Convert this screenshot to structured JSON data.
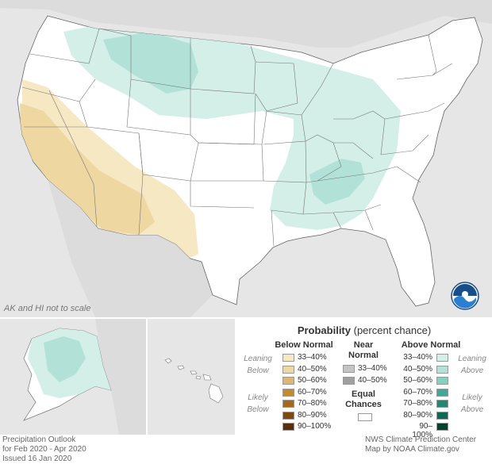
{
  "map": {
    "scale_note": "AK and HI not to scale",
    "logo_text": "NOAA"
  },
  "legend": {
    "title_bold": "Probability",
    "title_rest": " (percent chance)",
    "below": {
      "heading": "Below Normal",
      "leaning_label": [
        "Leaning",
        "Below"
      ],
      "likely_label": [
        "Likely",
        "Below"
      ],
      "items": [
        {
          "label": "33–40%",
          "color": "#f7e8c4"
        },
        {
          "label": "40–50%",
          "color": "#efd7a2"
        },
        {
          "label": "50–60%",
          "color": "#dcb672"
        },
        {
          "label": "60–70%",
          "color": "#c48a2e"
        },
        {
          "label": "70–80%",
          "color": "#a8681c"
        },
        {
          "label": "80–90%",
          "color": "#804810"
        },
        {
          "label": "90–100%",
          "color": "#5a2e08"
        }
      ]
    },
    "near": {
      "heading": [
        "Near",
        "Normal"
      ],
      "items": [
        {
          "label": "33–40%",
          "color": "#c4c4c4"
        },
        {
          "label": "40–50%",
          "color": "#a0a0a0"
        }
      ]
    },
    "equal": {
      "heading": [
        "Equal",
        "Chances"
      ],
      "color": "#ffffff"
    },
    "above": {
      "heading": "Above Normal",
      "leaning_label": [
        "Leaning",
        "Above"
      ],
      "likely_label": [
        "Likely",
        "Above"
      ],
      "items": [
        {
          "label": "33–40%",
          "color": "#d4efe8"
        },
        {
          "label": "40–50%",
          "color": "#b2e2d7"
        },
        {
          "label": "50–60%",
          "color": "#86d0bf"
        },
        {
          "label": "60–70%",
          "color": "#3fa896"
        },
        {
          "label": "70–80%",
          "color": "#1e8874"
        },
        {
          "label": "80–90%",
          "color": "#0d6855"
        },
        {
          "label": "90–100%",
          "color": "#04422f"
        }
      ]
    }
  },
  "footer": {
    "left": [
      "Precipitation Outlook",
      "for Feb 2020 - Apr 2020",
      "Issued 16 Jan 2020"
    ],
    "right": [
      "NWS Climate Prediction Center",
      "Map by NOAA Climate.gov"
    ]
  }
}
